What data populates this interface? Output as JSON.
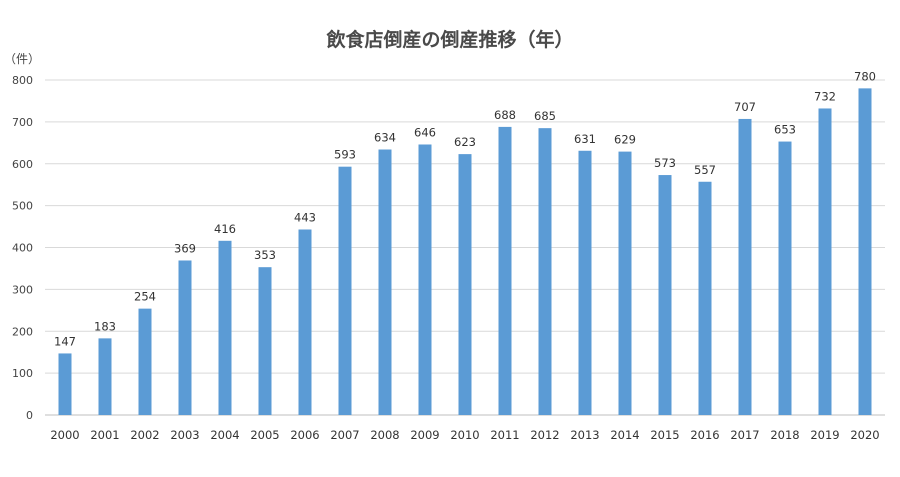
{
  "chart_data": {
    "type": "bar",
    "title": "飲食店倒産の倒産推移（年）",
    "unit_label": "（件）",
    "xlabel": "",
    "ylabel": "",
    "ylim": [
      0,
      800
    ],
    "yticks": [
      0,
      100,
      200,
      300,
      400,
      500,
      600,
      700,
      800
    ],
    "grid": true,
    "legend": "none",
    "bar_color": "#5b9bd5",
    "categories": [
      "2000",
      "2001",
      "2002",
      "2003",
      "2004",
      "2005",
      "2006",
      "2007",
      "2008",
      "2009",
      "2010",
      "2011",
      "2012",
      "2013",
      "2014",
      "2015",
      "2016",
      "2017",
      "2018",
      "2019",
      "2020"
    ],
    "values": [
      147,
      183,
      254,
      369,
      416,
      353,
      443,
      593,
      634,
      646,
      623,
      688,
      685,
      631,
      629,
      573,
      557,
      707,
      653,
      732,
      780
    ]
  }
}
